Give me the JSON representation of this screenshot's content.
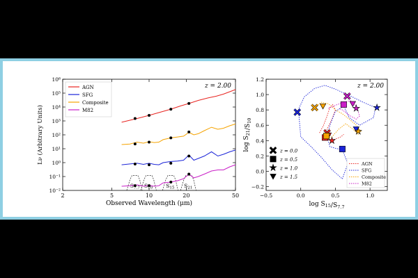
{
  "chart_data": [
    {
      "type": "line",
      "title": "",
      "annotation": "z = 2.00",
      "xlabel": "Observed Wavelength (μm)",
      "ylabel": "Lν (Arbitrary Units)",
      "xscale": "log",
      "yscale": "log",
      "xlim": [
        2,
        50
      ],
      "ylim": [
        0.01,
        1000000
      ],
      "xticks": [
        {
          "v": 2,
          "label": "2"
        },
        {
          "v": 5,
          "label": "5"
        },
        {
          "v": 10,
          "label": "10"
        },
        {
          "v": 20,
          "label": "20"
        },
        {
          "v": 50,
          "label": "50"
        }
      ],
      "yticks": [
        {
          "v": 0.01,
          "label": "10⁻²"
        },
        {
          "v": 0.1,
          "label": "10⁻¹"
        },
        {
          "v": 1,
          "label": "10⁰"
        },
        {
          "v": 10,
          "label": "10¹"
        },
        {
          "v": 100,
          "label": "10²"
        },
        {
          "v": 1000,
          "label": "10³"
        },
        {
          "v": 10000,
          "label": "10⁴"
        },
        {
          "v": 100000,
          "label": "10⁵"
        },
        {
          "v": 1000000,
          "label": "10⁶"
        }
      ],
      "legend_position": "top-left",
      "series": [
        {
          "name": "AGN",
          "color": "#e8231f",
          "x": [
            6,
            8,
            10,
            12,
            15,
            18,
            21,
            25,
            30,
            35,
            40,
            50
          ],
          "y": [
            800,
            1500,
            2500,
            4000,
            7000,
            12000,
            18000,
            30000,
            45000,
            60000,
            85000,
            180000
          ],
          "points_x": [
            7.7,
            10,
            15,
            21
          ],
          "points_y": [
            1500,
            2500,
            7000,
            18000
          ]
        },
        {
          "name": "SFG",
          "color": "#1a23d8",
          "x": [
            6,
            7,
            8,
            9,
            10,
            11,
            12,
            13,
            15,
            17,
            19,
            21,
            23,
            25,
            28,
            32,
            36,
            40,
            45,
            50
          ],
          "y": [
            0.7,
            0.8,
            0.9,
            0.75,
            0.9,
            0.75,
            0.7,
            1.0,
            1.2,
            1.3,
            1.5,
            3.5,
            1.5,
            2.0,
            3.0,
            6.0,
            3.0,
            4.0,
            6.0,
            8.0
          ],
          "points_x": [
            7.7,
            10,
            15,
            21
          ],
          "points_y": [
            0.8,
            0.7,
            0.9,
            3.0
          ]
        },
        {
          "name": "Composite",
          "color": "#f5a300",
          "x": [
            6,
            7,
            8,
            9,
            10,
            11,
            12,
            13,
            15,
            17,
            19,
            21,
            23,
            25,
            28,
            32,
            36,
            40,
            45,
            50
          ],
          "y": [
            20,
            22,
            30,
            25,
            32,
            28,
            30,
            45,
            60,
            70,
            80,
            150,
            100,
            120,
            200,
            350,
            250,
            300,
            450,
            600
          ],
          "points_x": [
            7.7,
            10,
            15,
            21
          ],
          "points_y": [
            22,
            30,
            60,
            160
          ]
        },
        {
          "name": "M82",
          "color": "#c91ec7",
          "x": [
            6,
            7,
            8,
            9,
            10,
            11,
            12,
            13,
            15,
            17,
            19,
            21,
            23,
            25,
            28,
            32,
            36,
            40,
            45,
            50
          ],
          "y": [
            0.02,
            0.022,
            0.025,
            0.02,
            0.023,
            0.02,
            0.022,
            0.035,
            0.04,
            0.05,
            0.07,
            0.15,
            0.08,
            0.1,
            0.15,
            0.25,
            0.3,
            0.3,
            0.5,
            0.7
          ],
          "points_x": [
            7.7,
            10,
            15,
            21
          ],
          "points_y": [
            0.022,
            0.022,
            0.04,
            0.15
          ]
        }
      ],
      "filters": [
        {
          "label": "S7.7",
          "center": 7.7
        },
        {
          "label": "S10",
          "center": 10
        },
        {
          "label": "S15",
          "center": 15
        },
        {
          "label": "S21",
          "center": 21
        }
      ]
    },
    {
      "type": "scatter",
      "title": "",
      "annotation": "z = 2.00",
      "xlabel": "log S15/S7.7",
      "ylabel": "log S21/S10",
      "xlim": [
        -0.5,
        1.25
      ],
      "ylim": [
        -0.25,
        1.2
      ],
      "xticks": [
        {
          "v": -0.5,
          "label": "−0.5"
        },
        {
          "v": 0.0,
          "label": "0.0"
        },
        {
          "v": 0.5,
          "label": "0.5"
        },
        {
          "v": 1.0,
          "label": "1.0"
        }
      ],
      "yticks": [
        {
          "v": -0.2,
          "label": "−0.2"
        },
        {
          "v": 0.0,
          "label": "0.0"
        },
        {
          "v": 0.2,
          "label": "0.2"
        },
        {
          "v": 0.4,
          "label": "0.4"
        },
        {
          "v": 0.6,
          "label": "0.6"
        },
        {
          "v": 0.8,
          "label": "0.8"
        },
        {
          "v": 1.0,
          "label": "1.0"
        },
        {
          "v": 1.2,
          "label": "1.2"
        }
      ],
      "legend_redshift": [
        {
          "marker": "x",
          "label": "z = 0.0"
        },
        {
          "marker": "square",
          "label": "z = 0.5"
        },
        {
          "marker": "star",
          "label": "z = 1.0"
        },
        {
          "marker": "triangle-down",
          "label": "z = 1.5"
        }
      ],
      "legend_redshift_position": "bottom-left",
      "legend_tracks_position": "bottom-right",
      "tracks": [
        {
          "name": "AGN",
          "color": "#e8231f",
          "style": "dotted",
          "x": [
            0.27,
            0.33,
            0.38,
            0.42,
            0.46,
            0.5,
            0.45,
            0.38,
            0.35,
            0.42,
            0.5,
            0.58,
            0.62
          ],
          "y": [
            0.5,
            0.6,
            0.72,
            0.83,
            0.87,
            0.8,
            0.68,
            0.55,
            0.44,
            0.4,
            0.42,
            0.45,
            0.48
          ]
        },
        {
          "name": "SFG",
          "color": "#1a23d8",
          "style": "dotted",
          "x": [
            -0.05,
            0.05,
            0.2,
            0.35,
            0.5,
            0.72,
            0.9,
            1.08,
            1.05,
            0.85,
            0.7,
            0.62,
            0.5,
            0.42,
            0.38,
            0.42,
            0.5,
            0.6,
            0.68,
            0.6,
            0.45,
            0.3,
            0.15,
            0.0,
            -0.03
          ],
          "y": [
            0.77,
            0.97,
            1.08,
            1.12,
            1.07,
            0.98,
            0.9,
            0.83,
            0.7,
            0.6,
            0.7,
            0.85,
            0.78,
            0.6,
            0.45,
            0.32,
            0.3,
            0.28,
            0.1,
            -0.1,
            0.02,
            0.18,
            0.32,
            0.45,
            0.77
          ]
        },
        {
          "name": "Composite",
          "color": "#f5a300",
          "style": "dotted",
          "x": [
            0.22,
            0.3,
            0.4,
            0.5,
            0.6,
            0.7,
            0.8,
            0.87,
            0.83,
            0.75,
            0.65,
            0.55,
            0.45,
            0.38
          ],
          "y": [
            0.85,
            0.9,
            0.88,
            0.8,
            0.75,
            0.68,
            0.6,
            0.52,
            0.48,
            0.55,
            0.62,
            0.55,
            0.45,
            0.44
          ]
        },
        {
          "name": "M82",
          "color": "#c91ec7",
          "style": "dotted",
          "x": [
            0.4,
            0.5,
            0.62,
            0.72,
            0.8,
            0.85,
            0.8,
            0.7,
            0.6,
            0.55
          ],
          "y": [
            0.82,
            0.86,
            0.9,
            0.92,
            0.85,
            0.72,
            0.68,
            0.73,
            0.8,
            0.82
          ]
        }
      ],
      "markers": [
        {
          "track": "AGN",
          "z": "0.0",
          "x": 0.38,
          "y": 0.5
        },
        {
          "track": "AGN",
          "z": "0.5",
          "x": 0.35,
          "y": 0.44
        },
        {
          "track": "AGN",
          "z": "1.0",
          "x": 0.45,
          "y": 0.4
        },
        {
          "track": "AGN",
          "z": "1.5",
          "x": 0.4,
          "y": 0.47
        },
        {
          "track": "SFG",
          "z": "0.0",
          "x": -0.05,
          "y": 0.77
        },
        {
          "track": "SFG",
          "z": "0.5",
          "x": 0.6,
          "y": 0.29
        },
        {
          "track": "SFG",
          "z": "1.0",
          "x": 1.1,
          "y": 0.83
        },
        {
          "track": "SFG",
          "z": "1.5",
          "x": 0.8,
          "y": 0.55
        },
        {
          "track": "Composite",
          "z": "0.0",
          "x": 0.2,
          "y": 0.83
        },
        {
          "track": "Composite",
          "z": "0.5",
          "x": 0.37,
          "y": 0.46
        },
        {
          "track": "Composite",
          "z": "1.0",
          "x": 0.83,
          "y": 0.52
        },
        {
          "track": "Composite",
          "z": "1.5",
          "x": 0.32,
          "y": 0.85
        },
        {
          "track": "M82",
          "z": "0.0",
          "x": 0.67,
          "y": 0.98
        },
        {
          "track": "M82",
          "z": "0.5",
          "x": 0.62,
          "y": 0.87
        },
        {
          "track": "M82",
          "z": "1.0",
          "x": 0.8,
          "y": 0.82
        },
        {
          "track": "M82",
          "z": "1.5",
          "x": 0.75,
          "y": 0.88
        }
      ]
    }
  ]
}
